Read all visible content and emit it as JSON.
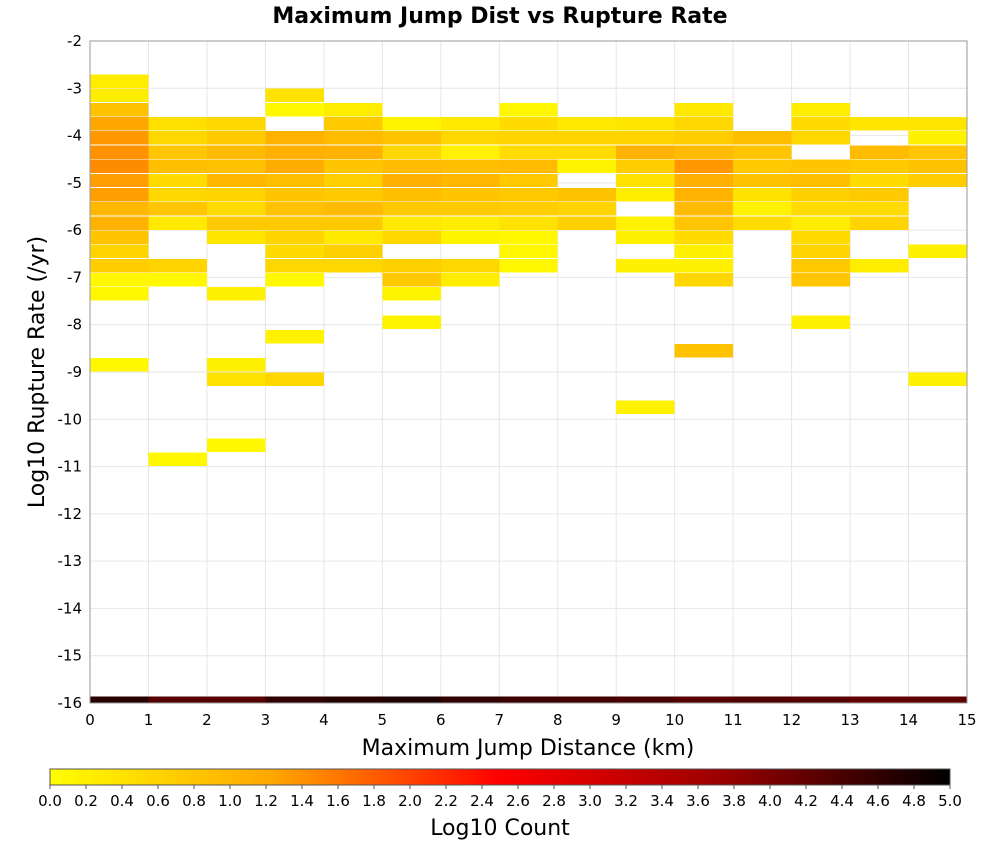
{
  "chart_data": {
    "type": "heatmap",
    "title": "Maximum Jump Dist vs Rupture Rate",
    "xlabel": "Maximum Jump Distance (km)",
    "ylabel": "Log10 Rupture Rate (/yr)",
    "xlim": [
      0,
      15
    ],
    "ylim": [
      -16,
      -2
    ],
    "x_ticks": [
      "0",
      "1",
      "2",
      "3",
      "4",
      "5",
      "6",
      "7",
      "8",
      "9",
      "10",
      "11",
      "12",
      "13",
      "14",
      "15"
    ],
    "y_ticks": [
      "-2",
      "-3",
      "-4",
      "-5",
      "-6",
      "-7",
      "-8",
      "-9",
      "-10",
      "-11",
      "-12",
      "-13",
      "-14",
      "-15",
      "-16"
    ],
    "grid": true,
    "x_bin_width": 1,
    "y_bin_height": 0.285,
    "colorbar": {
      "label": "Log10 Count",
      "min": 0.0,
      "max": 5.0,
      "ticks": [
        "0.0",
        "0.2",
        "0.4",
        "0.6",
        "0.8",
        "1.0",
        "1.2",
        "1.4",
        "1.6",
        "1.8",
        "2.0",
        "2.2",
        "2.4",
        "2.6",
        "2.8",
        "3.0",
        "3.2",
        "3.4",
        "3.6",
        "3.8",
        "4.0",
        "4.2",
        "4.4",
        "4.6",
        "4.8",
        "5.0"
      ],
      "stops": [
        "#ffff00",
        "#ffa500",
        "#ff0000",
        "#990000",
        "#000000"
      ]
    },
    "columns": [
      {
        "x": 0,
        "cells": [
          {
            "y": -2.85,
            "v": 0.25
          },
          {
            "y": -3.15,
            "v": 0.25
          },
          {
            "y": -3.45,
            "v": 0.85
          },
          {
            "y": -3.75,
            "v": 1.25
          },
          {
            "y": -4.05,
            "v": 1.35
          },
          {
            "y": -4.35,
            "v": 1.4
          },
          {
            "y": -4.65,
            "v": 1.45
          },
          {
            "y": -4.95,
            "v": 1.3
          },
          {
            "y": -5.25,
            "v": 1.3
          },
          {
            "y": -5.55,
            "v": 1.0
          },
          {
            "y": -5.85,
            "v": 1.05
          },
          {
            "y": -6.15,
            "v": 0.8
          },
          {
            "y": -6.45,
            "v": 0.6
          },
          {
            "y": -6.75,
            "v": 0.7
          },
          {
            "y": -7.05,
            "v": 0.1
          },
          {
            "y": -7.35,
            "v": 0.1
          },
          {
            "y": -8.85,
            "v": 0.1
          }
        ]
      },
      {
        "x": 1,
        "cells": [
          {
            "y": -3.75,
            "v": 0.45
          },
          {
            "y": -4.05,
            "v": 0.55
          },
          {
            "y": -4.35,
            "v": 0.8
          },
          {
            "y": -4.65,
            "v": 0.9
          },
          {
            "y": -4.95,
            "v": 0.5
          },
          {
            "y": -5.25,
            "v": 0.55
          },
          {
            "y": -5.55,
            "v": 0.8
          },
          {
            "y": -5.85,
            "v": 0.3
          },
          {
            "y": -6.75,
            "v": 0.6
          },
          {
            "y": -7.05,
            "v": 0.1
          },
          {
            "y": -10.85,
            "v": 0.1
          }
        ]
      },
      {
        "x": 2,
        "cells": [
          {
            "y": -3.75,
            "v": 0.55
          },
          {
            "y": -4.05,
            "v": 0.75
          },
          {
            "y": -4.35,
            "v": 0.95
          },
          {
            "y": -4.65,
            "v": 0.85
          },
          {
            "y": -4.95,
            "v": 1.0
          },
          {
            "y": -5.25,
            "v": 0.6
          },
          {
            "y": -5.55,
            "v": 0.5
          },
          {
            "y": -5.85,
            "v": 0.75
          },
          {
            "y": -6.15,
            "v": 0.35
          },
          {
            "y": -7.35,
            "v": 0.2
          },
          {
            "y": -8.85,
            "v": 0.2
          },
          {
            "y": -9.15,
            "v": 0.4
          },
          {
            "y": -10.55,
            "v": 0.1
          }
        ]
      },
      {
        "x": 3,
        "cells": [
          {
            "y": -3.15,
            "v": 0.4
          },
          {
            "y": -3.45,
            "v": 0.1
          },
          {
            "y": -4.05,
            "v": 1.05
          },
          {
            "y": -4.35,
            "v": 1.1
          },
          {
            "y": -4.65,
            "v": 1.15
          },
          {
            "y": -4.95,
            "v": 0.9
          },
          {
            "y": -5.25,
            "v": 0.8
          },
          {
            "y": -5.55,
            "v": 0.85
          },
          {
            "y": -5.85,
            "v": 0.75
          },
          {
            "y": -6.15,
            "v": 0.6
          },
          {
            "y": -6.45,
            "v": 0.5
          },
          {
            "y": -6.75,
            "v": 0.55
          },
          {
            "y": -7.05,
            "v": 0.1
          },
          {
            "y": -8.25,
            "v": 0.2
          },
          {
            "y": -9.15,
            "v": 0.55
          }
        ]
      },
      {
        "x": 4,
        "cells": [
          {
            "y": -3.45,
            "v": 0.25
          },
          {
            "y": -3.75,
            "v": 0.75
          },
          {
            "y": -4.05,
            "v": 0.95
          },
          {
            "y": -4.35,
            "v": 1.05
          },
          {
            "y": -4.65,
            "v": 0.8
          },
          {
            "y": -4.95,
            "v": 0.65
          },
          {
            "y": -5.25,
            "v": 0.75
          },
          {
            "y": -5.55,
            "v": 0.95
          },
          {
            "y": -5.85,
            "v": 0.75
          },
          {
            "y": -6.15,
            "v": 0.3
          },
          {
            "y": -6.45,
            "v": 0.65
          },
          {
            "y": -6.75,
            "v": 0.55
          }
        ]
      },
      {
        "x": 5,
        "cells": [
          {
            "y": -3.75,
            "v": 0.15
          },
          {
            "y": -4.05,
            "v": 0.8
          },
          {
            "y": -4.35,
            "v": 0.55
          },
          {
            "y": -4.65,
            "v": 0.95
          },
          {
            "y": -4.95,
            "v": 1.1
          },
          {
            "y": -5.25,
            "v": 0.9
          },
          {
            "y": -5.55,
            "v": 0.75
          },
          {
            "y": -5.85,
            "v": 0.3
          },
          {
            "y": -6.15,
            "v": 0.55
          },
          {
            "y": -6.75,
            "v": 0.65
          },
          {
            "y": -7.05,
            "v": 0.75
          },
          {
            "y": -7.35,
            "v": 0.15
          },
          {
            "y": -7.95,
            "v": 0.15
          }
        ]
      },
      {
        "x": 6,
        "cells": [
          {
            "y": -3.75,
            "v": 0.3
          },
          {
            "y": -4.05,
            "v": 0.55
          },
          {
            "y": -4.35,
            "v": 0.2
          },
          {
            "y": -4.65,
            "v": 0.9
          },
          {
            "y": -4.95,
            "v": 1.0
          },
          {
            "y": -5.25,
            "v": 0.8
          },
          {
            "y": -5.55,
            "v": 0.75
          },
          {
            "y": -5.85,
            "v": 0.25
          },
          {
            "y": -6.15,
            "v": 0.15
          },
          {
            "y": -6.75,
            "v": 0.55
          },
          {
            "y": -7.05,
            "v": 0.25
          }
        ]
      },
      {
        "x": 7,
        "cells": [
          {
            "y": -3.45,
            "v": 0.1
          },
          {
            "y": -3.75,
            "v": 0.5
          },
          {
            "y": -4.05,
            "v": 0.6
          },
          {
            "y": -4.35,
            "v": 0.5
          },
          {
            "y": -4.65,
            "v": 0.95
          },
          {
            "y": -4.95,
            "v": 0.75
          },
          {
            "y": -5.25,
            "v": 0.75
          },
          {
            "y": -5.55,
            "v": 0.7
          },
          {
            "y": -5.85,
            "v": 0.4
          },
          {
            "y": -6.15,
            "v": 0.1
          },
          {
            "y": -6.45,
            "v": 0.1
          },
          {
            "y": -6.75,
            "v": 0.1
          }
        ]
      },
      {
        "x": 8,
        "cells": [
          {
            "y": -3.75,
            "v": 0.3
          },
          {
            "y": -4.05,
            "v": 0.6
          },
          {
            "y": -4.35,
            "v": 0.5
          },
          {
            "y": -4.65,
            "v": 0.15
          },
          {
            "y": -5.25,
            "v": 0.85
          },
          {
            "y": -5.55,
            "v": 0.6
          },
          {
            "y": -5.85,
            "v": 0.65
          }
        ]
      },
      {
        "x": 9,
        "cells": [
          {
            "y": -3.75,
            "v": 0.35
          },
          {
            "y": -4.05,
            "v": 0.6
          },
          {
            "y": -4.35,
            "v": 1.05
          },
          {
            "y": -4.65,
            "v": 0.7
          },
          {
            "y": -4.95,
            "v": 0.4
          },
          {
            "y": -5.25,
            "v": 0.25
          },
          {
            "y": -5.85,
            "v": 0.2
          },
          {
            "y": -6.15,
            "v": 0.2
          },
          {
            "y": -6.75,
            "v": 0.2
          },
          {
            "y": -9.75,
            "v": 0.2
          }
        ]
      },
      {
        "x": 10,
        "cells": [
          {
            "y": -3.45,
            "v": 0.3
          },
          {
            "y": -3.75,
            "v": 0.55
          },
          {
            "y": -4.05,
            "v": 0.7
          },
          {
            "y": -4.35,
            "v": 0.95
          },
          {
            "y": -4.65,
            "v": 1.35
          },
          {
            "y": -4.95,
            "v": 1.1
          },
          {
            "y": -5.25,
            "v": 1.05
          },
          {
            "y": -5.55,
            "v": 0.95
          },
          {
            "y": -5.85,
            "v": 0.8
          },
          {
            "y": -6.15,
            "v": 0.5
          },
          {
            "y": -6.45,
            "v": 0.2
          },
          {
            "y": -6.75,
            "v": 0.2
          },
          {
            "y": -7.05,
            "v": 0.55
          },
          {
            "y": -8.55,
            "v": 0.85
          }
        ]
      },
      {
        "x": 11,
        "cells": [
          {
            "y": -4.05,
            "v": 0.9
          },
          {
            "y": -4.35,
            "v": 0.8
          },
          {
            "y": -4.65,
            "v": 0.75
          },
          {
            "y": -4.95,
            "v": 0.85
          },
          {
            "y": -5.25,
            "v": 0.4
          },
          {
            "y": -5.55,
            "v": 0.2
          },
          {
            "y": -5.85,
            "v": 0.5
          }
        ]
      },
      {
        "x": 12,
        "cells": [
          {
            "y": -3.45,
            "v": 0.25
          },
          {
            "y": -3.75,
            "v": 0.5
          },
          {
            "y": -4.05,
            "v": 0.55
          },
          {
            "y": -4.65,
            "v": 0.8
          },
          {
            "y": -4.95,
            "v": 0.9
          },
          {
            "y": -5.25,
            "v": 0.65
          },
          {
            "y": -5.55,
            "v": 0.5
          },
          {
            "y": -5.85,
            "v": 0.25
          },
          {
            "y": -6.15,
            "v": 0.5
          },
          {
            "y": -6.45,
            "v": 0.6
          },
          {
            "y": -6.75,
            "v": 0.75
          },
          {
            "y": -7.05,
            "v": 0.8
          },
          {
            "y": -7.95,
            "v": 0.2
          }
        ]
      },
      {
        "x": 13,
        "cells": [
          {
            "y": -3.75,
            "v": 0.35
          },
          {
            "y": -4.35,
            "v": 0.95
          },
          {
            "y": -4.65,
            "v": 0.75
          },
          {
            "y": -4.95,
            "v": 0.5
          },
          {
            "y": -5.25,
            "v": 0.75
          },
          {
            "y": -5.55,
            "v": 0.5
          },
          {
            "y": -5.85,
            "v": 0.6
          },
          {
            "y": -6.75,
            "v": 0.25
          }
        ]
      },
      {
        "x": 14,
        "cells": [
          {
            "y": -3.75,
            "v": 0.35
          },
          {
            "y": -4.05,
            "v": 0.2
          },
          {
            "y": -4.35,
            "v": 0.8
          },
          {
            "y": -4.65,
            "v": 0.85
          },
          {
            "y": -4.95,
            "v": 0.7
          },
          {
            "y": -6.45,
            "v": 0.2
          },
          {
            "y": -9.15,
            "v": 0.2
          }
        ]
      }
    ],
    "bottom_row": {
      "y": -16.0,
      "values": [
        4.7,
        4.3,
        4.3,
        4.6,
        4.7,
        4.75,
        4.6,
        4.5,
        4.45,
        4.4,
        4.3,
        4.35,
        4.3,
        4.2,
        4.25
      ]
    }
  }
}
